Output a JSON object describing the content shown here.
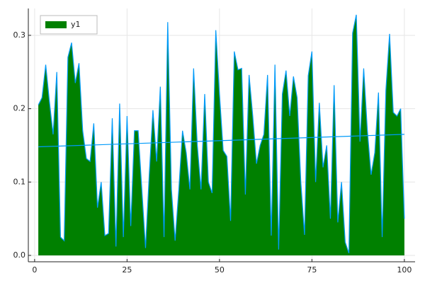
{
  "chart_data": {
    "type": "area",
    "x": [
      1,
      2,
      3,
      4,
      5,
      6,
      7,
      8,
      9,
      10,
      11,
      12,
      13,
      14,
      15,
      16,
      17,
      18,
      19,
      20,
      21,
      22,
      23,
      24,
      25,
      26,
      27,
      28,
      29,
      30,
      31,
      32,
      33,
      34,
      35,
      36,
      37,
      38,
      39,
      40,
      41,
      42,
      43,
      44,
      45,
      46,
      47,
      48,
      49,
      50,
      51,
      52,
      53,
      54,
      55,
      56,
      57,
      58,
      59,
      60,
      61,
      62,
      63,
      64,
      65,
      66,
      67,
      68,
      69,
      70,
      71,
      72,
      73,
      74,
      75,
      76,
      77,
      78,
      79,
      80,
      81,
      82,
      83,
      84,
      85,
      86,
      87,
      88,
      89,
      90,
      91,
      92,
      93,
      94,
      95,
      96,
      97,
      98,
      99,
      100
    ],
    "series": [
      {
        "name": "y1",
        "fill": "#008000",
        "color": "#009af9",
        "values": [
          0.205,
          0.215,
          0.26,
          0.21,
          0.165,
          0.25,
          0.025,
          0.02,
          0.27,
          0.29,
          0.235,
          0.262,
          0.17,
          0.132,
          0.128,
          0.18,
          0.065,
          0.1,
          0.027,
          0.03,
          0.187,
          0.012,
          0.207,
          0.025,
          0.19,
          0.04,
          0.17,
          0.17,
          0.09,
          0.01,
          0.11,
          0.198,
          0.128,
          0.23,
          0.025,
          0.318,
          0.09,
          0.02,
          0.09,
          0.17,
          0.14,
          0.09,
          0.255,
          0.15,
          0.09,
          0.22,
          0.1,
          0.085,
          0.307,
          0.22,
          0.143,
          0.135,
          0.047,
          0.278,
          0.253,
          0.255,
          0.083,
          0.246,
          0.19,
          0.125,
          0.15,
          0.165,
          0.246,
          0.027,
          0.26,
          0.008,
          0.22,
          0.252,
          0.19,
          0.244,
          0.215,
          0.1,
          0.028,
          0.245,
          0.278,
          0.1,
          0.208,
          0.12,
          0.15,
          0.05,
          0.232,
          0.045,
          0.1,
          0.018,
          0.003,
          0.303,
          0.328,
          0.155,
          0.255,
          0.17,
          0.11,
          0.14,
          0.222,
          0.025,
          0.225,
          0.302,
          0.195,
          0.19,
          0.2,
          0.05
        ]
      }
    ],
    "trend": {
      "color": "#009af9",
      "x": [
        1,
        100
      ],
      "values": [
        0.148,
        0.165
      ]
    },
    "xlim": [
      -1.7,
      102.9
    ],
    "ylim": [
      -0.0087,
      0.3366
    ],
    "xticks": [
      0,
      25,
      50,
      75,
      100
    ],
    "yticks": [
      {
        "value": 0,
        "label": "0.0"
      },
      {
        "value": 0.1,
        "label": "0.1"
      },
      {
        "value": 0.2,
        "label": "0.2"
      },
      {
        "value": 0.3,
        "label": "0.3"
      }
    ],
    "grid": true,
    "legend": "top-left"
  }
}
